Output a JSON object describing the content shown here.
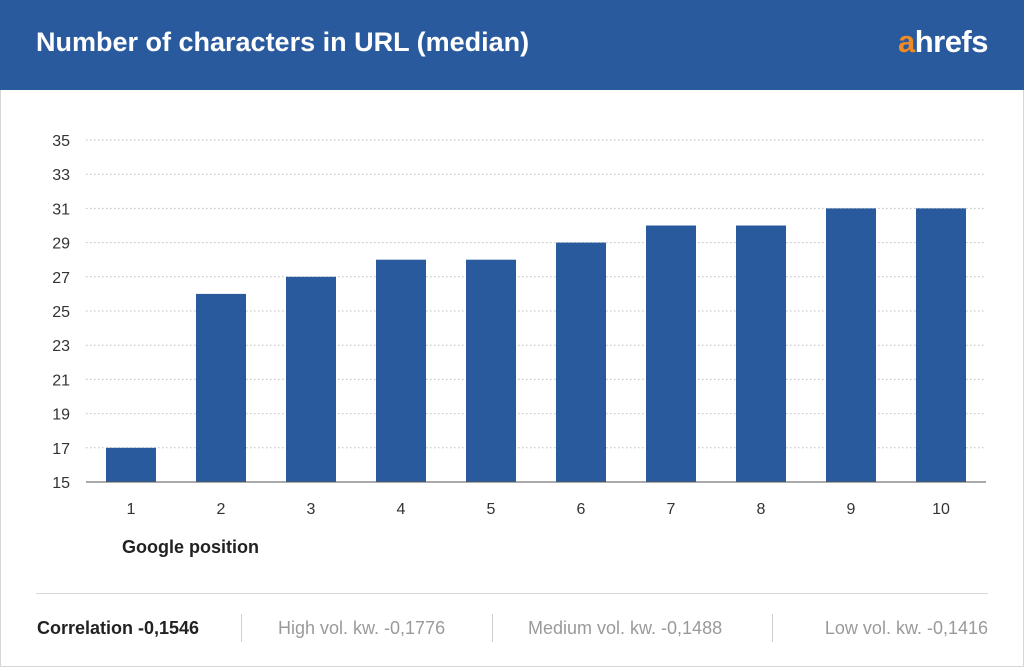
{
  "header": {
    "title": "Number of characters in URL (median)",
    "logo_first": "a",
    "logo_rest": "hrefs",
    "bg_color": "#2a5a9e",
    "logo_accent": "#f08a24"
  },
  "chart_data": {
    "type": "bar",
    "title": "Number of characters in URL (median)",
    "xlabel": "Google position",
    "ylabel": "",
    "categories": [
      "1",
      "2",
      "3",
      "4",
      "5",
      "6",
      "7",
      "8",
      "9",
      "10"
    ],
    "values": [
      17,
      26,
      27,
      28,
      28,
      29,
      30,
      30,
      31,
      31
    ],
    "ylim": [
      15,
      35
    ],
    "yticks": [
      15,
      17,
      19,
      21,
      23,
      25,
      27,
      29,
      31,
      33,
      35
    ],
    "grid": true,
    "bar_color": "#2a5a9e"
  },
  "footer": {
    "correlation": "Correlation -0,1546",
    "high_vol": "High vol. kw. -0,1776",
    "medium_vol": "Medium vol. kw. -0,1488",
    "low_vol": "Low vol. kw. -0,1416"
  }
}
